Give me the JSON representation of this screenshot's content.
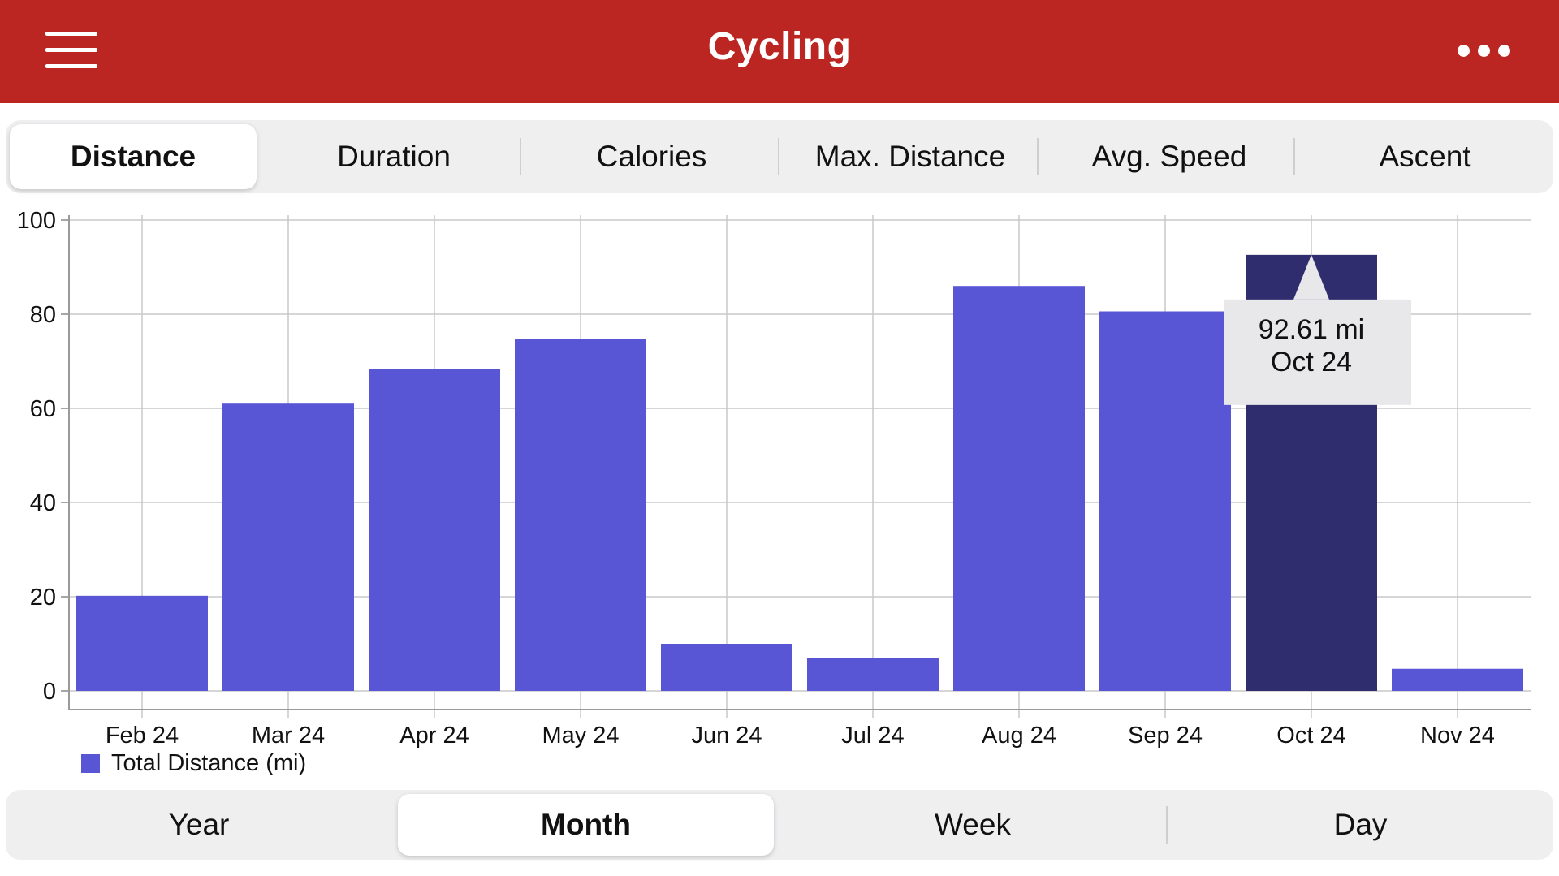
{
  "header": {
    "title": "Cycling",
    "menu_icon": "hamburger-menu-icon",
    "more_icon": "more-options-icon",
    "background": "#bb2622"
  },
  "metric_tabs": [
    {
      "label": "Distance",
      "selected": true
    },
    {
      "label": "Duration",
      "selected": false
    },
    {
      "label": "Calories",
      "selected": false
    },
    {
      "label": "Max. Distance",
      "selected": false
    },
    {
      "label": "Avg. Speed",
      "selected": false
    },
    {
      "label": "Ascent",
      "selected": false
    }
  ],
  "period_tabs": [
    {
      "label": "Year",
      "selected": false
    },
    {
      "label": "Month",
      "selected": true
    },
    {
      "label": "Week",
      "selected": false
    },
    {
      "label": "Day",
      "selected": false
    }
  ],
  "chart_data": {
    "type": "bar",
    "categories": [
      "Feb 24",
      "Mar 24",
      "Apr 24",
      "May 24",
      "Jun 24",
      "Jul 24",
      "Aug 24",
      "Sep 24",
      "Oct 24",
      "Nov 24"
    ],
    "series": [
      {
        "name": "Total Distance (mi)",
        "values": [
          20.2,
          61.0,
          68.3,
          74.8,
          10.0,
          7.0,
          86.0,
          80.6,
          92.61,
          4.7
        ],
        "color": "#5956d6"
      }
    ],
    "ylim": [
      0,
      100
    ],
    "yticks": [
      0,
      20,
      40,
      60,
      80,
      100
    ],
    "grid": true,
    "legend": "bottom-left",
    "highlight": {
      "index": 8,
      "color": "#2f2d6e",
      "tooltip_value": "92.61 mi",
      "tooltip_label": "Oct 24"
    }
  }
}
